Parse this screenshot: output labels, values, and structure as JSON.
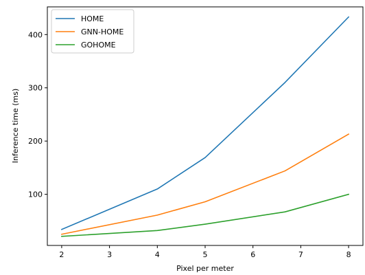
{
  "chart_data": {
    "type": "line",
    "title": "",
    "xlabel": "Pixel per meter",
    "ylabel": "Inference time (ms)",
    "xlim": [
      1.7,
      8.3
    ],
    "ylim": [
      4,
      452
    ],
    "x_ticks": [
      2,
      3,
      4,
      5,
      6,
      7,
      8
    ],
    "y_ticks": [
      100,
      200,
      300,
      400
    ],
    "grid": false,
    "legend_position": "top-left",
    "series": [
      {
        "name": "HOME",
        "color": "#1f77b4",
        "x": [
          2,
          4,
          5,
          6.67,
          8
        ],
        "y": [
          34,
          110,
          169,
          310,
          433
        ]
      },
      {
        "name": "GNN-HOME",
        "color": "#ff7f0e",
        "x": [
          2,
          4,
          5,
          6.67,
          8
        ],
        "y": [
          25,
          61,
          86,
          144,
          213
        ]
      },
      {
        "name": "GOHOME",
        "color": "#2ca02c",
        "x": [
          2,
          4,
          5,
          6.67,
          8
        ],
        "y": [
          21,
          32,
          44,
          67,
          100
        ]
      }
    ]
  }
}
